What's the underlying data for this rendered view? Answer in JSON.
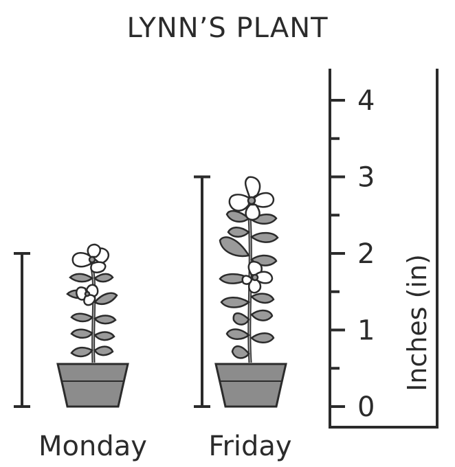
{
  "title": "LYNN’S PLANT",
  "ruler": {
    "axis_label": "Inches (in)",
    "ticks": [
      "0",
      "1",
      "2",
      "3",
      "4"
    ],
    "minor_step": 0.5,
    "max": 4.4
  },
  "plants": [
    {
      "day": "Monday",
      "height_in": 2
    },
    {
      "day": "Friday",
      "height_in": 3
    }
  ],
  "colors": {
    "ink": "#2b2b2b",
    "pot": "#8c8c8c",
    "leaf": "#9a9a9a",
    "flower": "#ffffff"
  }
}
